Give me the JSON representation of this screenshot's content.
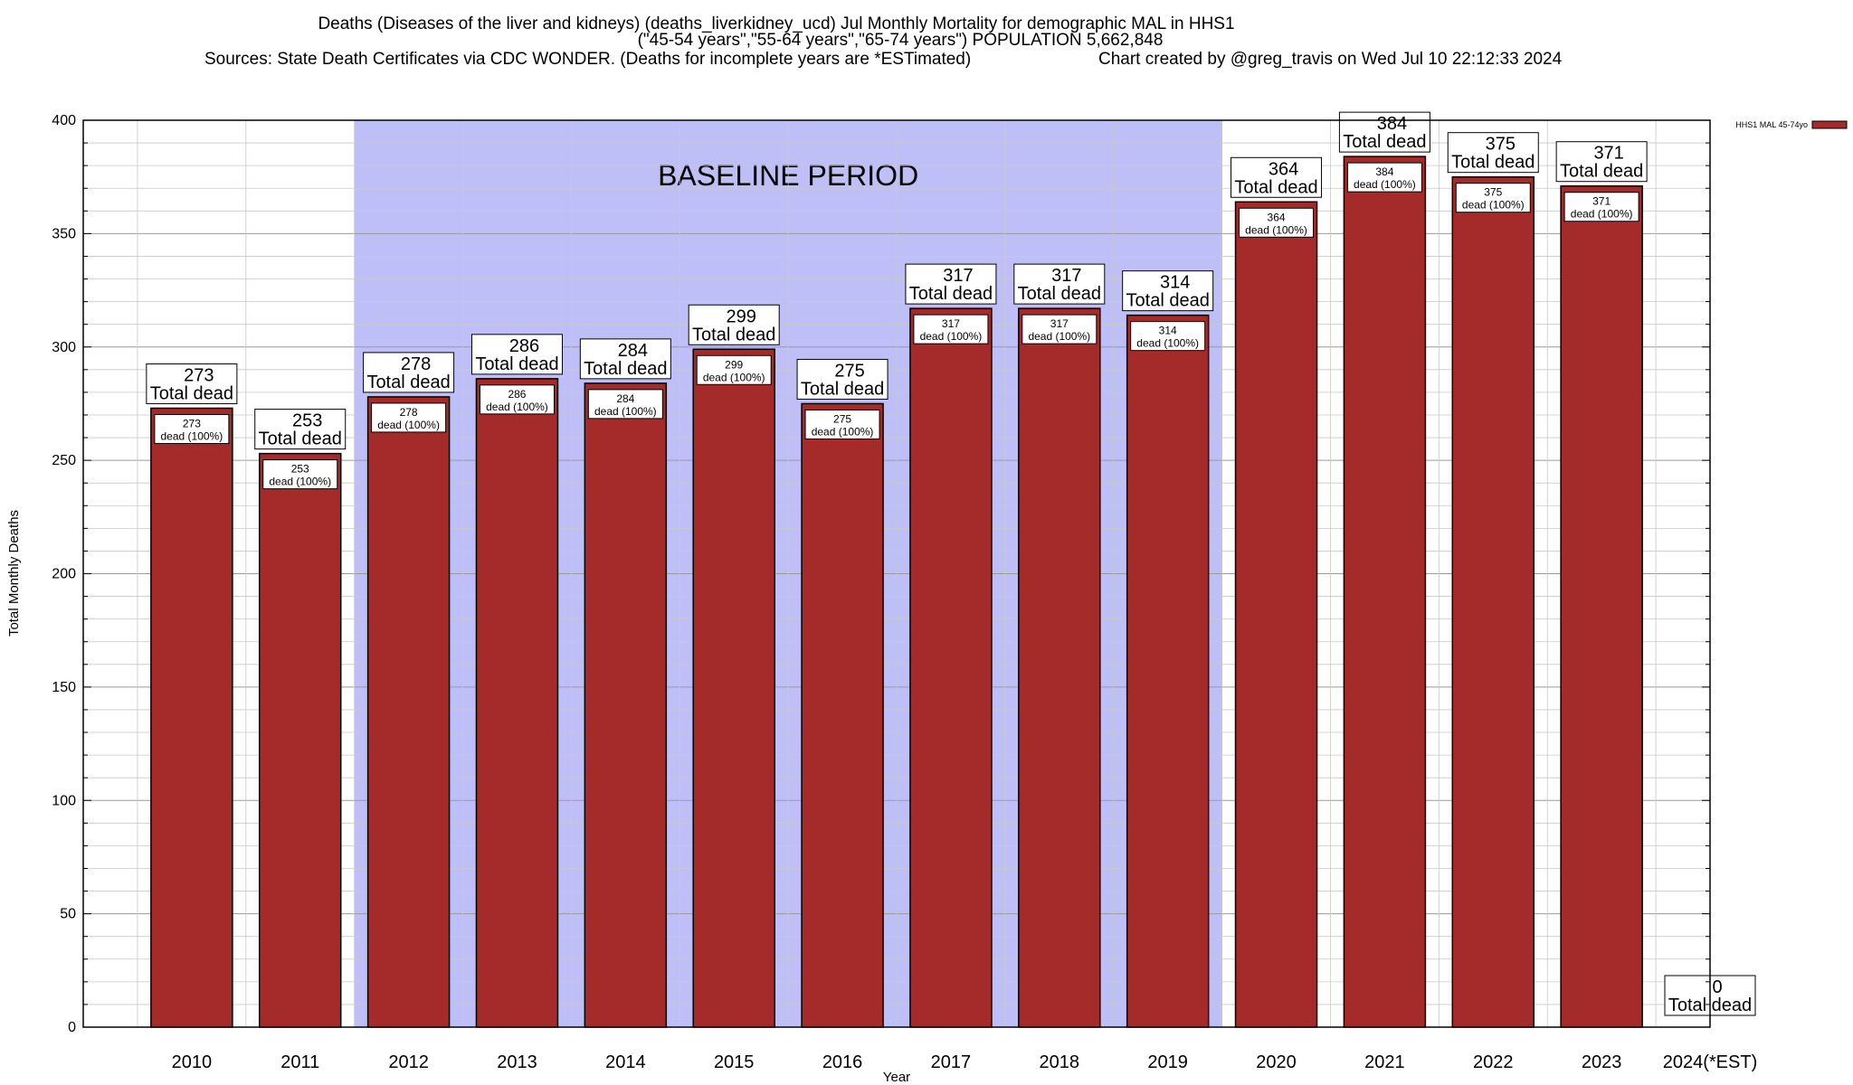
{
  "chart_data": {
    "type": "bar",
    "title_lines": [
      "Deaths (Diseases of the liver and kidneys) (deaths_liverkidney_ucd) Jul Monthly Mortality for demographic MAL in HHS1",
      "(\"45-54 years\",\"55-64 years\",\"65-74 years\") POPULATION 5,662,848",
      "Sources: State Death Certificates via CDC WONDER. (Deaths for incomplete years are *ESTimated)",
      "Chart created by @greg_travis on Wed Jul 10 22:12:33 2024"
    ],
    "xlabel": "Year",
    "ylabel": "Total Monthly Deaths",
    "ylim": [
      0,
      400
    ],
    "ytick_step": 50,
    "minor_tick_step": 10,
    "categories": [
      "2010",
      "2011",
      "2012",
      "2013",
      "2014",
      "2015",
      "2016",
      "2017",
      "2018",
      "2019",
      "2020",
      "2021",
      "2022",
      "2023",
      "2024(*EST)"
    ],
    "series": [
      {
        "name": "HHS1 MAL 45-74yo",
        "color": "#a52a2a",
        "values": [
          273,
          253,
          278,
          286,
          284,
          299,
          275,
          317,
          317,
          314,
          364,
          384,
          375,
          371,
          0
        ]
      }
    ],
    "total_label_suffix": "Total dead",
    "inner_label_suffix": "dead (100%)",
    "baseline_period": {
      "label": "BASELINE PERIOD",
      "start": "2012",
      "end": "2019",
      "color": "#bfbff8"
    },
    "grid": true,
    "legend_position": "top-right"
  }
}
